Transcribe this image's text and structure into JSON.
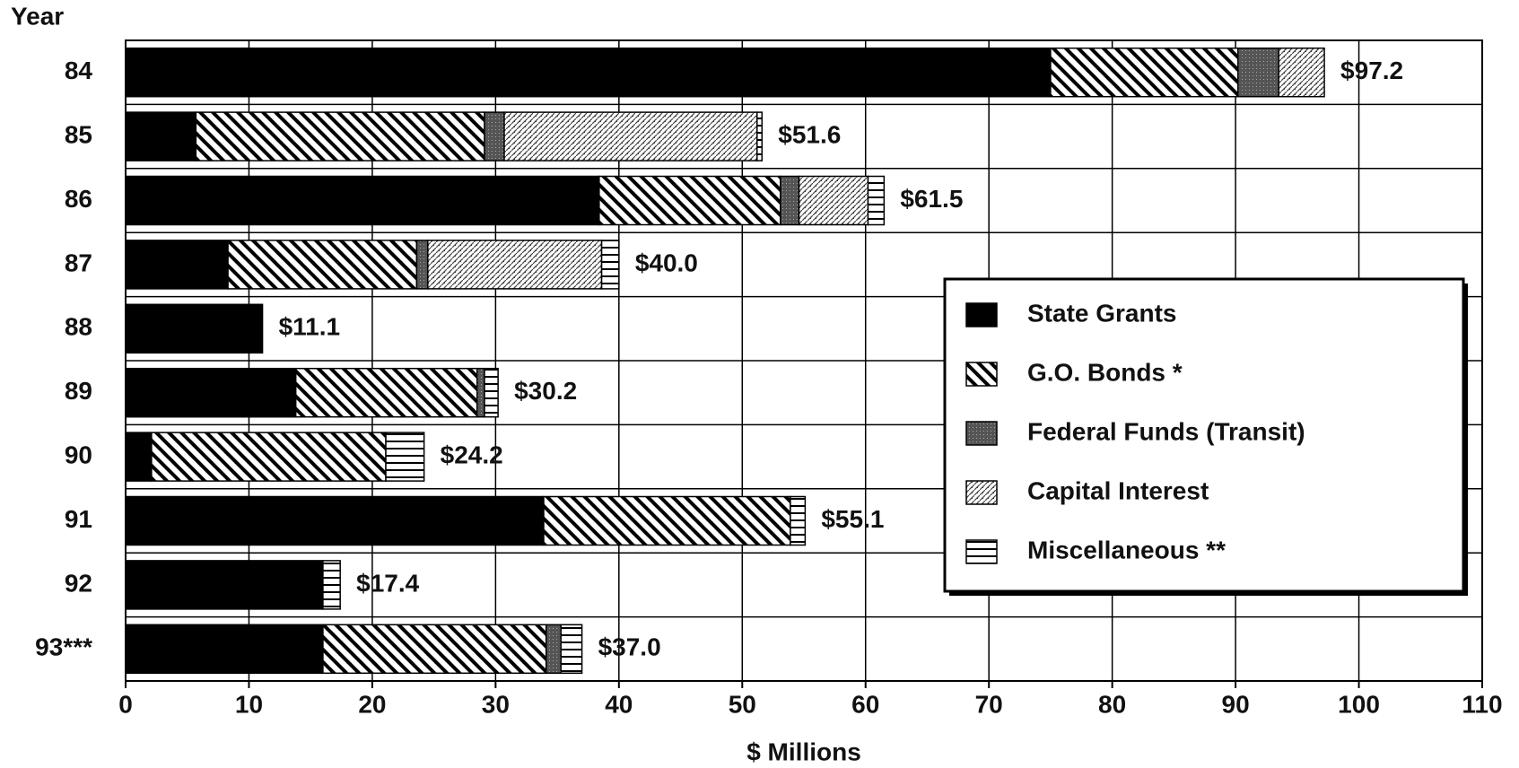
{
  "chart_data": {
    "type": "stacked_barh",
    "y_axis_title": "Year",
    "x_axis_title": "$ Millions",
    "categories": [
      "84",
      "85",
      "86",
      "87",
      "88",
      "89",
      "90",
      "91",
      "92",
      "93***"
    ],
    "series": [
      {
        "name": "State Grants",
        "color": "#000000",
        "pattern": "solid",
        "values": [
          75.0,
          5.7,
          38.4,
          8.3,
          11.1,
          13.8,
          2.1,
          33.9,
          16.0,
          16.0
        ]
      },
      {
        "name": "G.O. Bonds *",
        "color": "#000000",
        "pattern": "diagonal",
        "values": [
          15.2,
          23.4,
          14.7,
          15.3,
          0,
          14.7,
          19.0,
          20.0,
          0,
          18.1
        ]
      },
      {
        "name": "Federal Funds (Transit)",
        "color": "#555555",
        "pattern": "stipple",
        "values": [
          3.3,
          1.6,
          1.5,
          0.9,
          0,
          0.6,
          0,
          0,
          0,
          1.2
        ]
      },
      {
        "name": "Capital Interest",
        "color": "#000000",
        "pattern": "dots",
        "values": [
          3.7,
          20.5,
          5.6,
          14.1,
          0,
          0,
          0,
          0,
          0,
          0
        ]
      },
      {
        "name": "Miscellaneous **",
        "color": "#000000",
        "pattern": "horizontal",
        "values": [
          0,
          0.4,
          1.3,
          1.4,
          0,
          1.1,
          3.1,
          1.2,
          1.4,
          1.7
        ]
      }
    ],
    "totals": {
      "values": [
        97.2,
        51.6,
        61.5,
        40.0,
        11.1,
        30.2,
        24.2,
        55.1,
        17.4,
        37.0
      ],
      "value_labels": [
        "$97.2",
        "$51.6",
        "$61.5",
        "$40.0",
        "$11.1",
        "$30.2",
        "$24.2",
        "$55.1",
        "$17.4",
        "$37.0"
      ]
    },
    "xlim": [
      0,
      110
    ],
    "xticks": [
      0,
      10,
      20,
      30,
      40,
      50,
      60,
      70,
      80,
      90,
      100,
      110
    ],
    "grid": true,
    "legend": "right"
  }
}
